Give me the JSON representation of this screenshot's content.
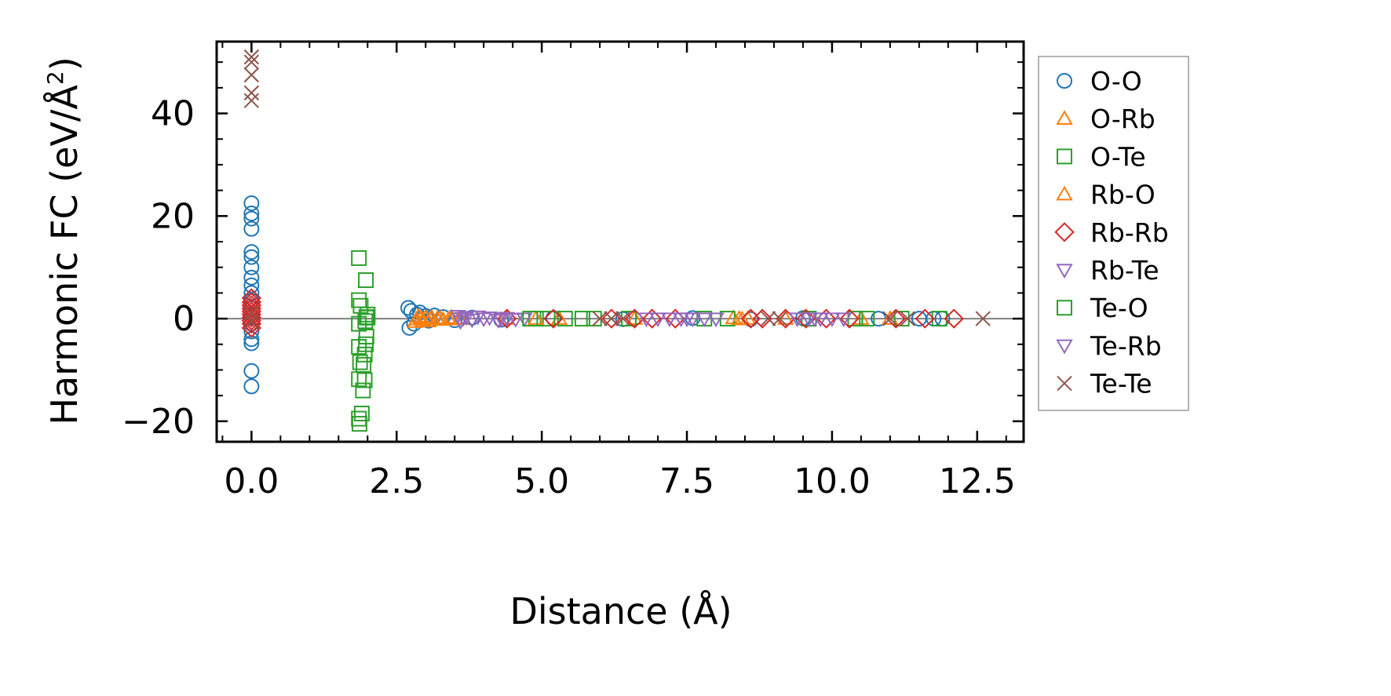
{
  "chart_data": {
    "type": "scatter",
    "title": "",
    "xlabel": "Distance (Å)",
    "ylabel_main": "Harmonic FC (eV/Å",
    "ylabel_sup": "2",
    "ylabel_close": ")",
    "xlim": [
      -0.6,
      13.3
    ],
    "ylim": [
      -24,
      54
    ],
    "x_ticks": [
      0.0,
      2.5,
      5.0,
      7.5,
      10.0,
      12.5
    ],
    "x_tick_labels": [
      "0.0",
      "2.5",
      "5.0",
      "7.5",
      "10.0",
      "12.5"
    ],
    "y_ticks": [
      -20,
      0,
      20,
      40
    ],
    "y_tick_labels": [
      "−20",
      "0",
      "20",
      "40"
    ],
    "zero_line": 0,
    "legend_position": "outside-right",
    "series": [
      {
        "name": "O-O",
        "marker": "circle",
        "color": "#1f77b4",
        "points": [
          [
            0,
            22.5
          ],
          [
            0,
            20.5
          ],
          [
            0,
            19.5
          ],
          [
            0,
            17.5
          ],
          [
            0,
            13
          ],
          [
            0,
            12
          ],
          [
            0,
            10
          ],
          [
            0,
            8
          ],
          [
            0,
            6.5
          ],
          [
            0,
            5
          ],
          [
            0,
            3.5
          ],
          [
            0,
            2
          ],
          [
            0,
            0.5
          ],
          [
            0,
            -1
          ],
          [
            0,
            -2.5
          ],
          [
            0,
            -4
          ],
          [
            0,
            -4.8
          ],
          [
            0,
            -10.2
          ],
          [
            0,
            -13.2
          ],
          [
            2.7,
            2.1
          ],
          [
            2.72,
            -1.8
          ],
          [
            2.75,
            1.5
          ],
          [
            2.8,
            -1
          ],
          [
            2.85,
            0.8
          ],
          [
            2.9,
            1.2
          ],
          [
            3.0,
            0.5
          ],
          [
            3.05,
            -0.4
          ],
          [
            3.15,
            0.6
          ],
          [
            3.3,
            0.3
          ],
          [
            3.5,
            -0.3
          ],
          [
            3.8,
            0.2
          ],
          [
            4.3,
            -0.2
          ],
          [
            5.2,
            0.1
          ],
          [
            6.4,
            -0.1
          ],
          [
            7.6,
            0.1
          ],
          [
            8.6,
            -0.1
          ],
          [
            9.5,
            0.1
          ],
          [
            10.8,
            0
          ],
          [
            11.5,
            0
          ],
          [
            11.75,
            0
          ],
          [
            11.9,
            0
          ]
        ]
      },
      {
        "name": "O-Rb",
        "marker": "triangle-up",
        "color": "#ff7f0e",
        "points": [
          [
            2.82,
            -0.6
          ],
          [
            2.88,
            0.4
          ],
          [
            2.95,
            -0.3
          ],
          [
            3.0,
            0.2
          ],
          [
            3.05,
            -0.5
          ],
          [
            3.1,
            0.3
          ],
          [
            3.2,
            0
          ],
          [
            3.3,
            -0.2
          ],
          [
            3.45,
            0.2
          ],
          [
            3.6,
            0
          ],
          [
            4.4,
            0
          ],
          [
            5.3,
            0
          ],
          [
            6.6,
            0
          ],
          [
            8.3,
            0.1
          ],
          [
            8.45,
            -0.1
          ],
          [
            8.55,
            0
          ],
          [
            9.2,
            0
          ],
          [
            10.5,
            0
          ],
          [
            11.0,
            0
          ]
        ]
      },
      {
        "name": "O-Te",
        "marker": "square",
        "color": "#2ca02c",
        "points": [
          [
            1.85,
            11.8
          ],
          [
            1.85,
            3.6
          ],
          [
            1.88,
            2.5
          ],
          [
            1.85,
            -1
          ],
          [
            1.85,
            -5.5
          ],
          [
            1.87,
            -8.5
          ],
          [
            1.85,
            -11.8
          ],
          [
            1.85,
            -19.5
          ],
          [
            1.86,
            -20.5
          ],
          [
            1.9,
            -18.5
          ],
          [
            1.92,
            -14
          ],
          [
            1.95,
            -12
          ],
          [
            1.93,
            -9
          ],
          [
            1.95,
            -7
          ],
          [
            1.97,
            -5
          ],
          [
            1.98,
            -3.5
          ],
          [
            1.96,
            -0.5
          ],
          [
            1.98,
            0.3
          ],
          [
            2.0,
            0.8
          ],
          [
            1.97,
            7.5
          ],
          [
            4.9,
            0
          ],
          [
            5.1,
            0
          ],
          [
            5.4,
            0
          ],
          [
            5.7,
            0
          ],
          [
            6.5,
            0
          ],
          [
            7.8,
            0
          ],
          [
            8.2,
            0
          ],
          [
            9.6,
            0
          ],
          [
            10.4,
            0
          ],
          [
            11.2,
            0
          ],
          [
            11.85,
            0
          ]
        ]
      },
      {
        "name": "Rb-O",
        "marker": "triangle-up",
        "color": "#ff7f0e",
        "points": [
          [
            2.84,
            -0.1
          ],
          [
            2.92,
            0.1
          ],
          [
            3.08,
            -0.1
          ],
          [
            3.25,
            0.1
          ],
          [
            3.4,
            -0.1
          ],
          [
            4.9,
            0
          ],
          [
            8.4,
            0
          ]
        ]
      },
      {
        "name": "Rb-Rb",
        "marker": "diamond",
        "color": "#d62728",
        "points": [
          [
            0,
            4
          ],
          [
            0,
            3.2
          ],
          [
            0,
            2.6
          ],
          [
            0,
            2
          ],
          [
            0,
            1.4
          ],
          [
            0,
            0.8
          ],
          [
            0,
            0.2
          ],
          [
            0,
            -0.4
          ],
          [
            0,
            -1
          ],
          [
            0,
            -1.8
          ],
          [
            4.4,
            0
          ],
          [
            5.2,
            0
          ],
          [
            6.2,
            0
          ],
          [
            6.6,
            0
          ],
          [
            6.9,
            0
          ],
          [
            7.3,
            0
          ],
          [
            8.6,
            0
          ],
          [
            8.8,
            0
          ],
          [
            9.2,
            0
          ],
          [
            9.55,
            0
          ],
          [
            9.9,
            0
          ],
          [
            10.3,
            0
          ],
          [
            11.1,
            0
          ],
          [
            11.6,
            0
          ],
          [
            12.1,
            0
          ]
        ]
      },
      {
        "name": "Rb-Te",
        "marker": "triangle-down",
        "color": "#9467bd",
        "points": [
          [
            3.55,
            0.5
          ],
          [
            3.6,
            -0.5
          ],
          [
            3.7,
            0.3
          ],
          [
            3.8,
            -0.2
          ],
          [
            3.9,
            0.4
          ],
          [
            4.0,
            0
          ],
          [
            4.1,
            0.2
          ],
          [
            4.25,
            -0.3
          ],
          [
            4.4,
            0.1
          ],
          [
            4.55,
            -0.1
          ],
          [
            4.7,
            0
          ],
          [
            6.8,
            0
          ],
          [
            7.0,
            0
          ],
          [
            7.2,
            0
          ],
          [
            7.4,
            0
          ],
          [
            7.6,
            0
          ],
          [
            7.8,
            0
          ],
          [
            8.0,
            0
          ],
          [
            9.4,
            0
          ],
          [
            9.6,
            0
          ],
          [
            9.8,
            0
          ],
          [
            10.0,
            0
          ],
          [
            10.2,
            0
          ]
        ]
      },
      {
        "name": "Te-O",
        "marker": "square",
        "color": "#2ca02c",
        "points": [
          [
            2.0,
            0.2
          ],
          [
            4.8,
            0
          ],
          [
            5.9,
            0
          ],
          [
            10.6,
            0
          ]
        ]
      },
      {
        "name": "Te-Rb",
        "marker": "triangle-down",
        "color": "#9467bd",
        "points": [
          [
            3.65,
            0.1
          ],
          [
            4.3,
            0
          ],
          [
            7.5,
            0
          ],
          [
            9.7,
            0
          ]
        ]
      },
      {
        "name": "Te-Te",
        "marker": "x",
        "color": "#8c564b",
        "points": [
          [
            0,
            51
          ],
          [
            0,
            50
          ],
          [
            0,
            47.5
          ],
          [
            0,
            44
          ],
          [
            0,
            42.5
          ],
          [
            0,
            1
          ],
          [
            0,
            -0.5
          ],
          [
            6.0,
            0
          ],
          [
            6.2,
            0
          ],
          [
            6.4,
            0
          ],
          [
            8.9,
            0
          ],
          [
            9.1,
            0
          ],
          [
            11.0,
            0
          ],
          [
            11.3,
            0
          ],
          [
            12.6,
            0
          ]
        ]
      }
    ]
  }
}
